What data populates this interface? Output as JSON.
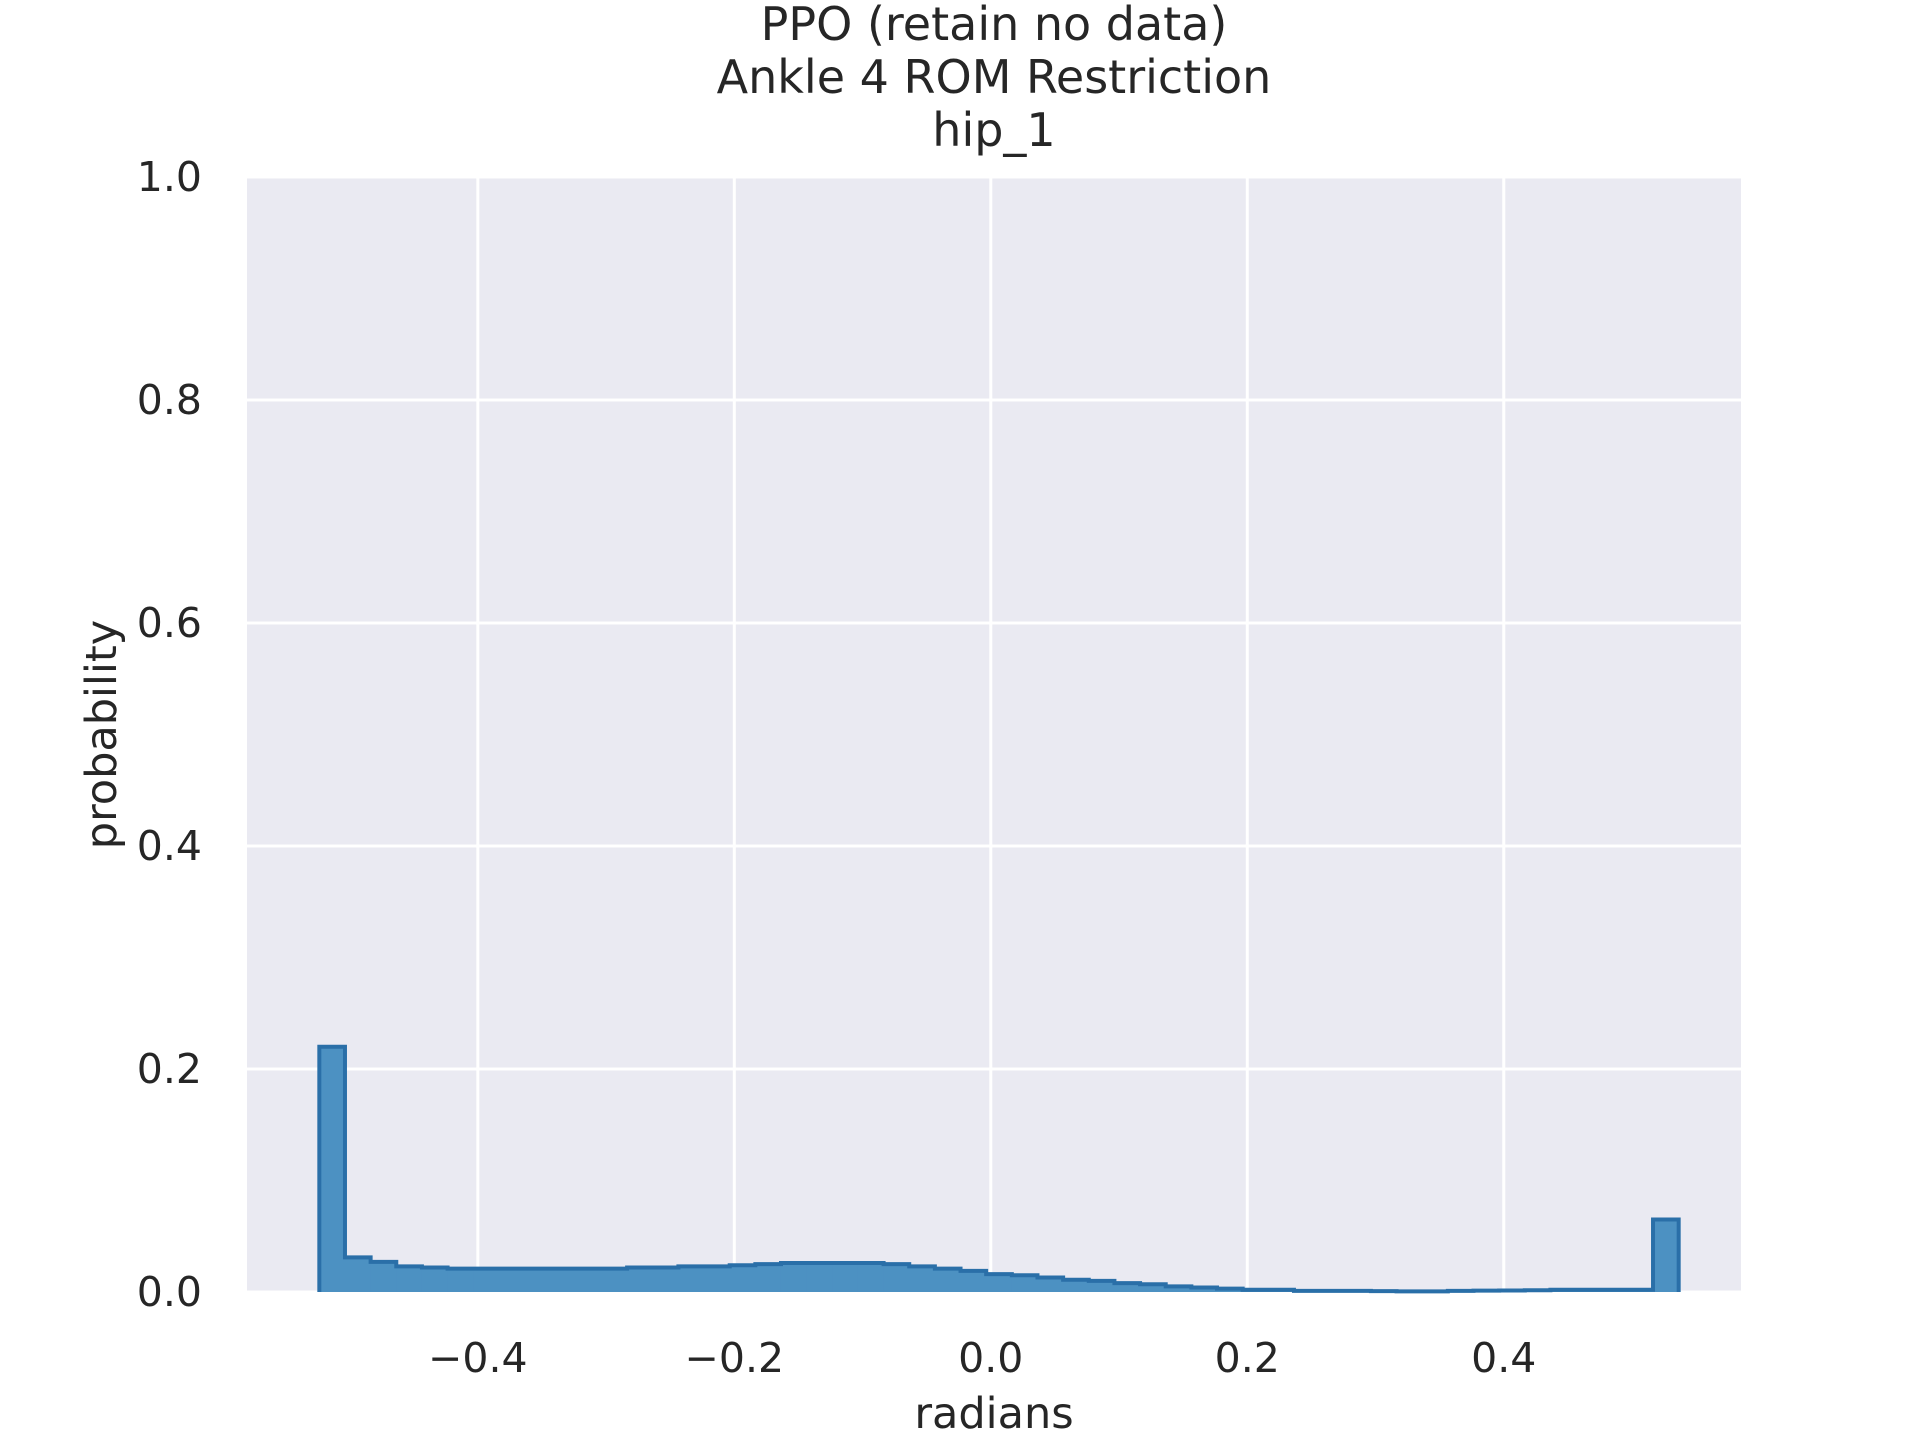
{
  "chart_data": {
    "type": "bar",
    "title": [
      "PPO (retain no data)",
      "Ankle 4 ROM Restriction",
      "hip_1"
    ],
    "xlabel": "radians",
    "ylabel": "probability",
    "xlim": [
      -0.58,
      0.585
    ],
    "ylim": [
      0.0,
      1.0
    ],
    "xticks": [
      -0.4,
      -0.2,
      0.0,
      0.2,
      0.4
    ],
    "xtick_labels": [
      "−0.4",
      "−0.2",
      "0.0",
      "0.2",
      "0.4"
    ],
    "yticks": [
      0.0,
      0.2,
      0.4,
      0.6,
      0.8,
      1.0
    ],
    "ytick_labels": [
      "0.0",
      "0.2",
      "0.4",
      "0.6",
      "0.8",
      "1.0"
    ],
    "grid": true,
    "colors": {
      "face": "#eaeaf2",
      "bar": "#4c91c2",
      "edge": "#2a6fa8",
      "grid": "#ffffff"
    },
    "bin_edges": [
      -0.5236,
      -0.5036,
      -0.4836,
      -0.4636,
      -0.4436,
      -0.4236,
      -0.4036,
      -0.3836,
      -0.3636,
      -0.3436,
      -0.3236,
      -0.3036,
      -0.2836,
      -0.2636,
      -0.2436,
      -0.2236,
      -0.2036,
      -0.1836,
      -0.1636,
      -0.1436,
      -0.1236,
      -0.1036,
      -0.0836,
      -0.0636,
      -0.0436,
      -0.0236,
      -0.0036,
      0.0164,
      0.0364,
      0.0564,
      0.0764,
      0.0964,
      0.1164,
      0.1364,
      0.1564,
      0.1764,
      0.1964,
      0.2164,
      0.2364,
      0.2564,
      0.2764,
      0.2964,
      0.3164,
      0.3364,
      0.3564,
      0.3764,
      0.3964,
      0.4164,
      0.4364,
      0.4564,
      0.4764,
      0.4964,
      0.5164,
      0.5364
    ],
    "values": [
      0.22,
      0.031,
      0.027,
      0.023,
      0.022,
      0.021,
      0.021,
      0.021,
      0.021,
      0.021,
      0.021,
      0.021,
      0.022,
      0.022,
      0.023,
      0.023,
      0.024,
      0.025,
      0.026,
      0.026,
      0.026,
      0.026,
      0.025,
      0.023,
      0.021,
      0.019,
      0.016,
      0.015,
      0.013,
      0.011,
      0.01,
      0.008,
      0.007,
      0.005,
      0.004,
      0.003,
      0.002,
      0.002,
      0.001,
      0.001,
      0.001,
      0.0008,
      0.0006,
      0.0006,
      0.001,
      0.0012,
      0.0014,
      0.0016,
      0.002,
      0.002,
      0.002,
      0.002,
      0.065
    ]
  }
}
